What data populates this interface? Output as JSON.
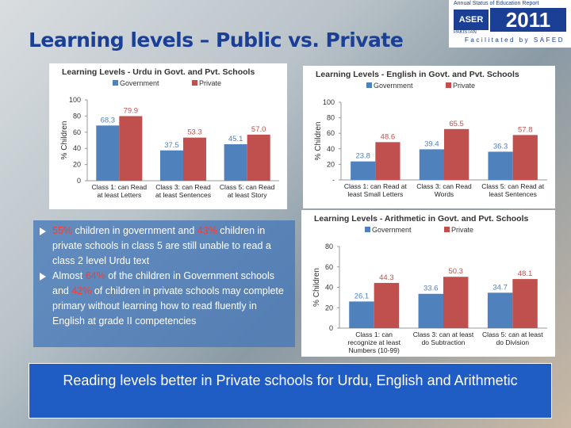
{
  "title": "Learning levels – Public vs. Private",
  "logo": {
    "top": "Annual Status of Education Report",
    "name": "ASER",
    "country": "PAKISTAN",
    "year": "2011",
    "credit": "Facilitated by SAFED"
  },
  "bullets": [
    [
      {
        "text": "55%",
        "color": "#ff3b2f"
      },
      {
        "text": " children in government and "
      },
      {
        "text": "43%",
        "color": "#ff3b2f"
      },
      {
        "text": " children in private schools in class 5 are still unable to read a class 2 level Urdu text"
      }
    ],
    [
      {
        "text": "Almost "
      },
      {
        "text": "64%",
        "color": "#ff3b2f"
      },
      {
        "text": " of the children in Government schools and "
      },
      {
        "text": "42%",
        "color": "#ff3b2f"
      },
      {
        "text": " of children in private schools may complete primary without learning how to read fluently in English at grade II competencies"
      }
    ]
  ],
  "banner": "Reading levels better in Private schools for Urdu, English and Arithmetic",
  "chart_data": [
    {
      "type": "bar",
      "title": "Learning Levels - Urdu in Govt. and Pvt. Schools",
      "y_label": "% Children",
      "categories": [
        "Class 1: can Read at least Letters",
        "Class 3: can Read at least Sentences",
        "Class 5: can Read at least Story"
      ],
      "series": [
        {
          "name": "Government",
          "color": "#4f81bd",
          "values": [
            68.3,
            37.5,
            45.1
          ]
        },
        {
          "name": "Private",
          "color": "#c0504d",
          "values": [
            79.9,
            53.3,
            57.0
          ],
          "value_labels": [
            "79.9",
            "53.3",
            "57.0"
          ]
        }
      ],
      "ylim": [
        0,
        100
      ],
      "yticks": [
        0,
        20,
        40,
        60,
        80,
        100
      ]
    },
    {
      "type": "bar",
      "title": "Learning Levels - English in Govt. and Pvt. Schools",
      "y_label": "% Children",
      "categories": [
        "Class 1: can Read at least Small Letters",
        "Class 3: can Read Words",
        "Class 5: can Read at least Sentences"
      ],
      "series": [
        {
          "name": "Government",
          "color": "#4f81bd",
          "values": [
            23.8,
            39.4,
            36.3
          ]
        },
        {
          "name": "Private",
          "color": "#c0504d",
          "values": [
            48.6,
            65.5,
            57.8
          ]
        }
      ],
      "ylim": [
        0,
        100
      ],
      "yticks": [
        {
          "value": 0,
          "label": "-"
        },
        20,
        40,
        60,
        80,
        100
      ]
    },
    {
      "type": "bar",
      "title": "Learning Levels - Arithmetic in Govt. and Pvt. Schools",
      "y_label": "% Children",
      "categories": [
        "Class 1: can recognize at least Numbers (10-99)",
        "Class 3: can at least do Subtraction",
        "Class 5: can at least do Division"
      ],
      "series": [
        {
          "name": "Government",
          "color": "#4f81bd",
          "values": [
            26.1,
            33.6,
            34.7
          ]
        },
        {
          "name": "Private",
          "color": "#c0504d",
          "values": [
            44.3,
            50.3,
            48.1
          ]
        }
      ],
      "ylim": [
        0,
        80
      ],
      "yticks": [
        0,
        20,
        40,
        60,
        80
      ]
    }
  ]
}
